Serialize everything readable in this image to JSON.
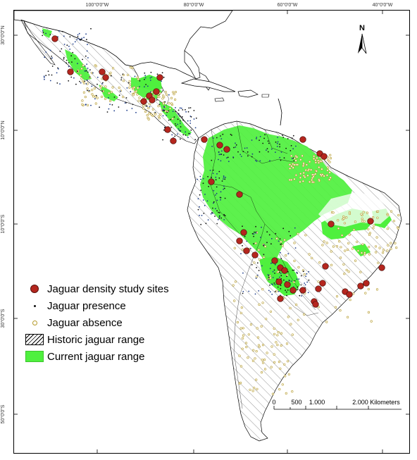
{
  "axis": {
    "top_labels": [
      "100°0'0\"W",
      "80°0'0\"W",
      "60°0'0\"W",
      "40°0'0\"W"
    ],
    "left_labels": [
      "30°0'0\"N",
      "10°0'0\"N",
      "10°0'0\"S",
      "30°0'0\"S",
      "50°0'0\"S"
    ]
  },
  "north_arrow": {
    "letter": "N"
  },
  "legend": {
    "items": [
      {
        "label": "Jaguar density study sites",
        "symbol": "red-dot"
      },
      {
        "label": "Jaguar presence",
        "symbol": "black-dot"
      },
      {
        "label": "Jaguar absence",
        "symbol": "yellow-circle"
      },
      {
        "label": "Historic jaguar range",
        "symbol": "hatch"
      },
      {
        "label": "Current jaguar range",
        "symbol": "green-fill"
      }
    ]
  },
  "scale_bar": {
    "labels": [
      "0",
      "500",
      "1.000",
      "2.000 Kilometers"
    ]
  },
  "colors": {
    "current_range": "#4ff03e",
    "study_site": "#b5261e",
    "presence": "#1a3a8a",
    "absence": "#b59a2a"
  }
}
